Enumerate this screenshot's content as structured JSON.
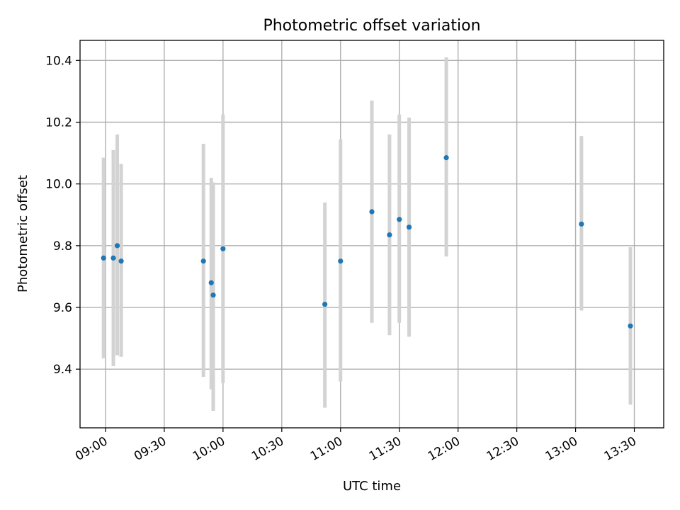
{
  "chart_data": {
    "type": "scatter",
    "title": "Photometric offset variation",
    "xlabel": "UTC time",
    "ylabel": "Photometric offset",
    "x_format": "HH:MM",
    "xlim": [
      "08:47",
      "13:45"
    ],
    "ylim": [
      9.21,
      10.465
    ],
    "x_ticks": [
      "09:00",
      "09:30",
      "10:00",
      "10:30",
      "11:00",
      "11:30",
      "12:00",
      "12:30",
      "13:00",
      "13:30"
    ],
    "y_ticks": [
      9.4,
      9.6,
      9.8,
      10.0,
      10.2,
      10.4
    ],
    "y_tick_labels": [
      "9.4",
      "9.6",
      "9.8",
      "10.0",
      "10.2",
      "10.4"
    ],
    "grid": true,
    "point_color": "#1f77b4",
    "errorbar_color": "#d3d3d3",
    "points": [
      {
        "x": "08:59",
        "y": 9.76,
        "yerr_low": 9.435,
        "yerr_high": 10.085
      },
      {
        "x": "09:04",
        "y": 9.76,
        "yerr_low": 9.41,
        "yerr_high": 10.11
      },
      {
        "x": "09:06",
        "y": 9.8,
        "yerr_low": 9.445,
        "yerr_high": 10.16
      },
      {
        "x": "09:08",
        "y": 9.75,
        "yerr_low": 9.44,
        "yerr_high": 10.065
      },
      {
        "x": "09:50",
        "y": 9.75,
        "yerr_low": 9.375,
        "yerr_high": 10.13
      },
      {
        "x": "09:54",
        "y": 9.68,
        "yerr_low": 9.335,
        "yerr_high": 10.02
      },
      {
        "x": "09:55",
        "y": 9.64,
        "yerr_low": 9.265,
        "yerr_high": 10.005
      },
      {
        "x": "10:00",
        "y": 9.79,
        "yerr_low": 9.355,
        "yerr_high": 10.225
      },
      {
        "x": "10:52",
        "y": 9.61,
        "yerr_low": 9.275,
        "yerr_high": 9.94
      },
      {
        "x": "11:00",
        "y": 9.75,
        "yerr_low": 9.36,
        "yerr_high": 10.145
      },
      {
        "x": "11:16",
        "y": 9.91,
        "yerr_low": 9.55,
        "yerr_high": 10.27
      },
      {
        "x": "11:25",
        "y": 9.835,
        "yerr_low": 9.51,
        "yerr_high": 10.16
      },
      {
        "x": "11:30",
        "y": 9.885,
        "yerr_low": 9.55,
        "yerr_high": 10.225
      },
      {
        "x": "11:35",
        "y": 9.86,
        "yerr_low": 9.505,
        "yerr_high": 10.215
      },
      {
        "x": "11:54",
        "y": 10.085,
        "yerr_low": 9.765,
        "yerr_high": 10.41
      },
      {
        "x": "13:03",
        "y": 9.87,
        "yerr_low": 9.59,
        "yerr_high": 10.155
      },
      {
        "x": "13:28",
        "y": 9.54,
        "yerr_low": 9.285,
        "yerr_high": 9.795
      }
    ]
  }
}
